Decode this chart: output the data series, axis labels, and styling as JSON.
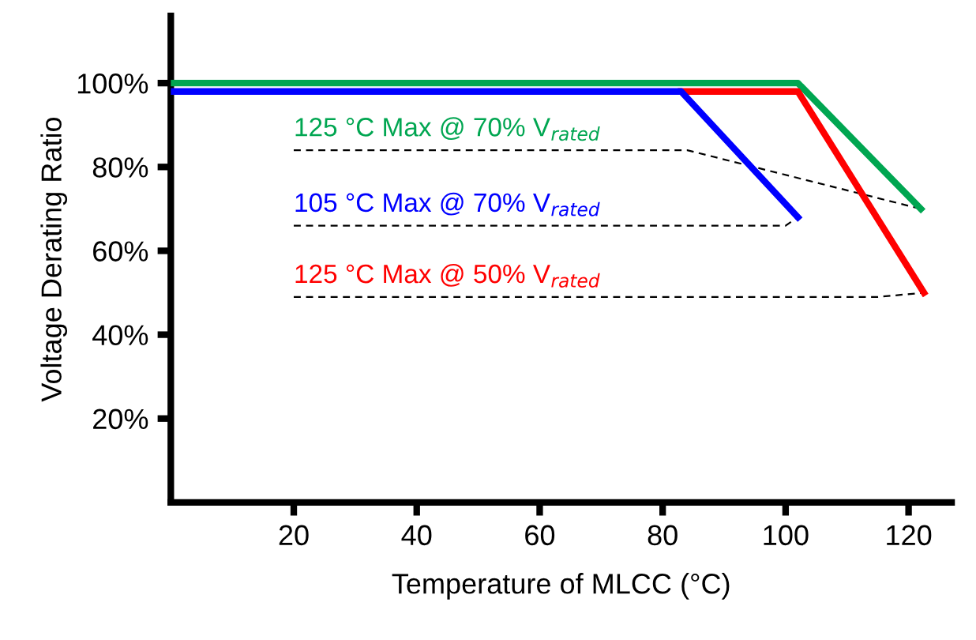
{
  "chart_data": {
    "type": "line",
    "xlabel": "Temperature of MLCC (°C)",
    "ylabel": "Voltage Derating Ratio",
    "series": [
      {
        "name": "125 °C Max @ 70% V$_{rated}$",
        "color": "#00a651",
        "x": [
          0,
          102,
          122
        ],
        "values": [
          100,
          100,
          70
        ]
      },
      {
        "name": "125 °C Max @ 50% V$_{rated}$",
        "color": "#ff0000",
        "x": [
          83,
          102,
          122.5
        ],
        "values": [
          98,
          98,
          50
        ]
      },
      {
        "name": "105 °C Max @ 70% V$_{rated}$",
        "color": "#0000ff",
        "x": [
          0,
          83,
          102
        ],
        "values": [
          98,
          98,
          68
        ]
      }
    ],
    "xlim": [
      0,
      127
    ],
    "ylim": [
      0,
      116
    ],
    "xticks": [
      20,
      40,
      60,
      80,
      100,
      120
    ],
    "yticks": [
      {
        "value": 20,
        "label": "20%"
      },
      {
        "value": 40,
        "label": "40%"
      },
      {
        "value": 60,
        "label": "60%"
      },
      {
        "value": 80,
        "label": "80%"
      },
      {
        "value": 100,
        "label": "100%"
      }
    ],
    "grid": false,
    "legend": false,
    "marker": "none",
    "line_style": "solid"
  }
}
